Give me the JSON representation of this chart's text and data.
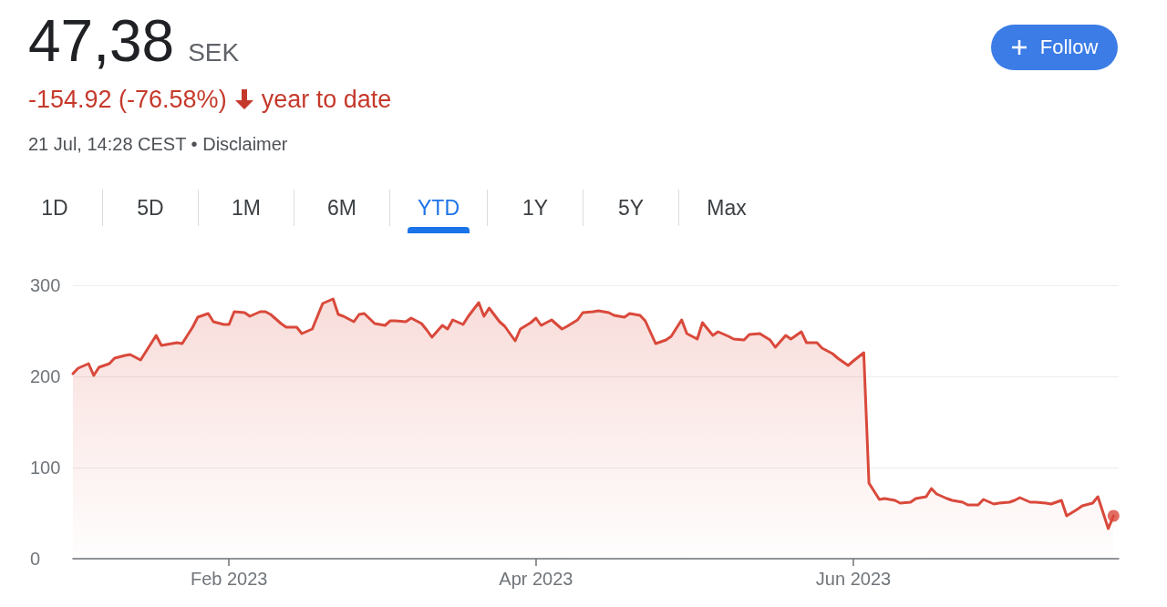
{
  "chart_data": {
    "type": "area",
    "title": "47,38 SEK",
    "subtitle": "-154.92 (-76.58%)",
    "annotations": [
      "year to date",
      "21 Jul, 14:28 CEST • Disclaimer",
      "Follow",
      "1D",
      "5D",
      "1M",
      "6M",
      "YTD",
      "1Y",
      "5Y",
      "Max"
    ],
    "xlim": [
      "2023-01-02",
      "2023-07-22"
    ],
    "xticks": [
      {
        "value": "2023-02-01",
        "label": "Feb 2023"
      },
      {
        "value": "2023-04-01",
        "label": "Apr 2023"
      },
      {
        "value": "2023-06-01",
        "label": "Jun 2023"
      }
    ],
    "ylim": [
      0,
      300
    ],
    "yticks": [
      0,
      100,
      200,
      300
    ],
    "grid": "y",
    "series": [
      {
        "color": "#d9493b",
        "x": [
          "2023-01-02",
          "2023-01-03",
          "2023-01-05",
          "2023-01-06",
          "2023-01-07",
          "2023-01-09",
          "2023-01-10",
          "2023-01-12",
          "2023-01-13",
          "2023-01-15",
          "2023-01-18",
          "2023-01-19",
          "2023-01-22",
          "2023-01-23",
          "2023-01-25",
          "2023-01-26",
          "2023-01-28",
          "2023-01-29",
          "2023-01-31",
          "2023-02-01",
          "2023-02-02",
          "2023-02-04",
          "2023-02-05",
          "2023-02-07",
          "2023-02-08",
          "2023-02-09",
          "2023-02-11",
          "2023-02-12",
          "2023-02-14",
          "2023-02-15",
          "2023-02-17",
          "2023-02-18",
          "2023-02-19",
          "2023-02-21",
          "2023-02-22",
          "2023-02-23",
          "2023-02-25",
          "2023-02-26",
          "2023-02-27",
          "2023-03-01",
          "2023-03-03",
          "2023-03-04",
          "2023-03-05",
          "2023-03-07",
          "2023-03-08",
          "2023-03-10",
          "2023-03-11",
          "2023-03-12",
          "2023-03-14",
          "2023-03-15",
          "2023-03-16",
          "2023-03-18",
          "2023-03-19",
          "2023-03-21",
          "2023-03-22",
          "2023-03-23",
          "2023-03-25",
          "2023-03-26",
          "2023-03-28",
          "2023-03-29",
          "2023-03-31",
          "2023-04-01",
          "2023-04-02",
          "2023-04-04",
          "2023-04-06",
          "2023-04-07",
          "2023-04-09",
          "2023-04-10",
          "2023-04-12",
          "2023-04-13",
          "2023-04-15",
          "2023-04-16",
          "2023-04-18",
          "2023-04-19",
          "2023-04-21",
          "2023-04-22",
          "2023-04-24",
          "2023-04-26",
          "2023-04-27",
          "2023-04-29",
          "2023-04-30",
          "2023-05-02",
          "2023-05-03",
          "2023-05-05",
          "2023-05-06",
          "2023-05-08",
          "2023-05-09",
          "2023-05-11",
          "2023-05-12",
          "2023-05-14",
          "2023-05-16",
          "2023-05-17",
          "2023-05-19",
          "2023-05-20",
          "2023-05-22",
          "2023-05-23",
          "2023-05-25",
          "2023-05-26",
          "2023-05-28",
          "2023-05-29",
          "2023-05-31",
          "2023-06-01",
          "2023-06-03",
          "2023-06-04",
          "2023-06-06",
          "2023-06-07",
          "2023-06-09",
          "2023-06-10",
          "2023-06-12",
          "2023-06-13",
          "2023-06-15",
          "2023-06-16",
          "2023-06-17",
          "2023-06-19",
          "2023-06-20",
          "2023-06-22",
          "2023-06-23",
          "2023-06-25",
          "2023-06-26",
          "2023-06-28",
          "2023-06-29",
          "2023-07-01",
          "2023-07-02",
          "2023-07-03",
          "2023-07-05",
          "2023-07-06",
          "2023-07-08",
          "2023-07-09",
          "2023-07-11",
          "2023-07-12",
          "2023-07-14",
          "2023-07-15",
          "2023-07-17",
          "2023-07-18",
          "2023-07-20",
          "2023-07-21"
        ],
        "values": [
          203,
          209,
          214,
          201,
          210,
          214,
          220,
          223,
          224,
          218,
          245,
          234,
          237,
          236,
          254,
          265,
          269,
          260,
          257,
          257,
          271,
          270,
          266,
          271,
          271,
          268,
          258,
          254,
          254,
          247,
          252,
          266,
          280,
          285,
          268,
          266,
          260,
          268,
          269,
          258,
          256,
          261,
          261,
          260,
          264,
          258,
          251,
          243,
          256,
          252,
          262,
          257,
          266,
          281,
          266,
          275,
          260,
          255,
          239,
          252,
          259,
          264,
          256,
          262,
          252,
          255,
          262,
          270,
          271,
          272,
          270,
          267,
          265,
          269,
          267,
          261,
          236,
          240,
          244,
          262,
          247,
          241,
          259,
          245,
          249,
          244,
          241,
          240,
          246,
          247,
          240,
          232,
          245,
          241,
          249,
          237,
          237,
          231,
          225,
          220,
          212,
          217,
          226,
          83,
          65,
          66,
          64,
          61,
          62,
          66,
          68,
          77,
          71,
          66,
          64,
          62,
          59,
          59,
          65,
          60,
          61,
          62,
          64,
          67,
          62,
          62,
          61,
          60,
          64,
          47,
          54,
          58,
          61,
          68,
          33,
          47
        ]
      },
      {
        "type": "scatter",
        "marker": "circle",
        "color": "#d9493b",
        "x": [
          "2023-07-21"
        ],
        "values": [
          47
        ]
      }
    ]
  }
}
